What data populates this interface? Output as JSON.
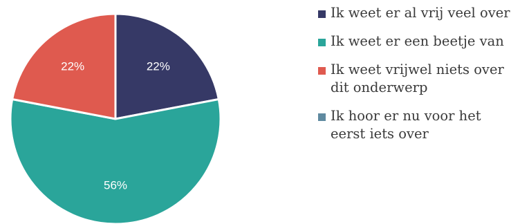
{
  "chart_data": {
    "type": "pie",
    "categories": [
      "Ik weet er al vrij veel over",
      "Ik weet er een beetje van",
      "Ik weet vrijwel niets over dit onderwerp",
      "Ik hoor er nu voor het eerst iets over"
    ],
    "values": [
      22,
      56,
      22,
      0
    ],
    "data_labels": [
      "22%",
      "56%",
      "22%",
      ""
    ],
    "colors": [
      "#363966",
      "#2aa59a",
      "#df5a4f",
      "#5f8aa0"
    ],
    "legend": "right",
    "unit": "%"
  }
}
